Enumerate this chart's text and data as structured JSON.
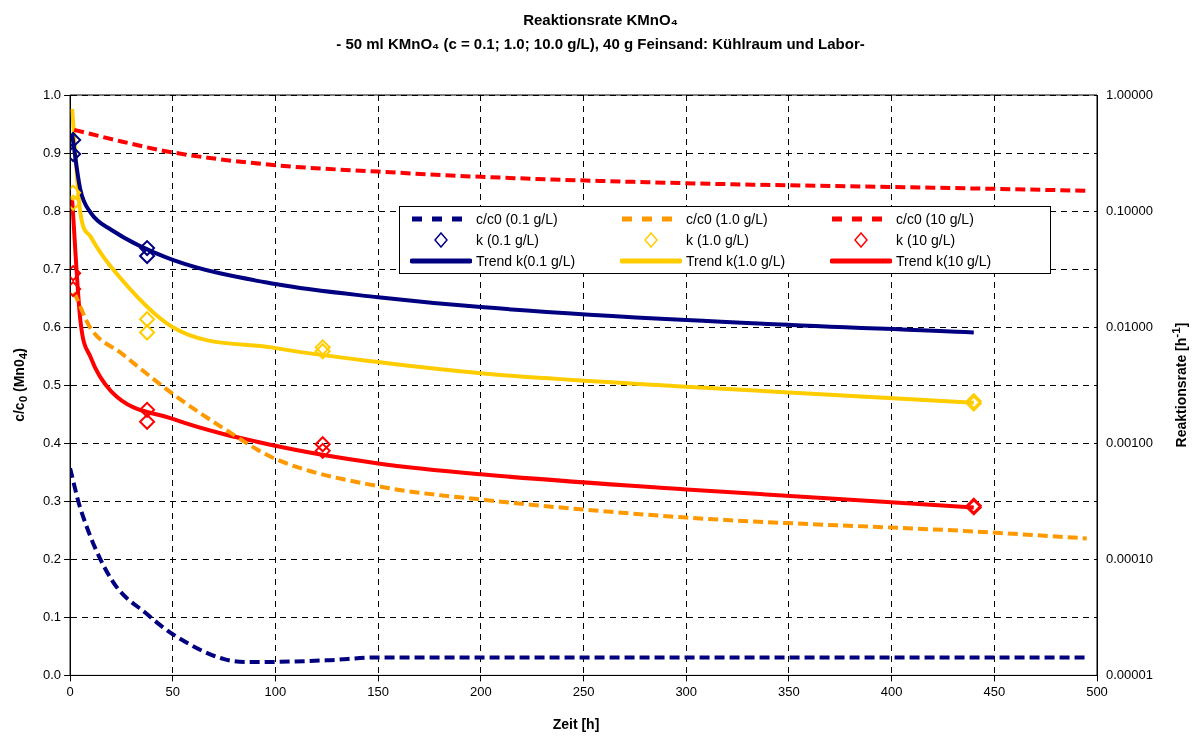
{
  "chart_data": {
    "type": "line",
    "title": "Reaktionsrate KMnO₄",
    "subtitle": "- 50 ml KMnO₄ (c = 0.1; 1.0; 10.0 g/L), 40 g Feinsand: Kühlraum und Labor-",
    "xlabel": "Zeit [h]",
    "ylabel": "c/c$_{0}$ (Mn0$_{4}$)",
    "y2label": "Reaktionsrate [h$^{-1}$]",
    "xlim": [
      0,
      500
    ],
    "xticks": [
      0,
      50,
      100,
      150,
      200,
      250,
      300,
      350,
      400,
      450,
      500
    ],
    "ylim": [
      0,
      1
    ],
    "yticks": [
      {
        "value": 0,
        "label": "0.0"
      },
      {
        "value": 0.1,
        "label": "0.1"
      },
      {
        "value": 0.2,
        "label": "0.2"
      },
      {
        "value": 0.3,
        "label": "0.3"
      },
      {
        "value": 0.4,
        "label": "0.4"
      },
      {
        "value": 0.5,
        "label": "0.5"
      },
      {
        "value": 0.6,
        "label": "0.6"
      },
      {
        "value": 0.7,
        "label": "0.7"
      },
      {
        "value": 0.8,
        "label": "0.8"
      },
      {
        "value": 0.9,
        "label": "0.9"
      },
      {
        "value": 1,
        "label": "1.0"
      }
    ],
    "y2lim": [
      1e-05,
      1
    ],
    "y2ticks": [
      {
        "value": 1e-05,
        "label": "0.00001"
      },
      {
        "value": 0.0001,
        "label": "0.00010"
      },
      {
        "value": 0.001,
        "label": "0.00100"
      },
      {
        "value": 0.01,
        "label": "0.01000"
      },
      {
        "value": 0.1,
        "label": "0.10000"
      },
      {
        "value": 1,
        "label": "1.00000"
      }
    ],
    "log": "y2",
    "grid": true,
    "legend": "top right",
    "series": [
      {
        "name": "c/c0 (0.1 g/L)",
        "type": "line",
        "line_style": "dashed",
        "marker": "none",
        "color": "#000080",
        "x": [
          0,
          5,
          20,
          38,
          50,
          75,
          90,
          125,
          150,
          200,
          300,
          440,
          495
        ],
        "values": [
          0.357,
          0.288,
          0.166,
          0.104,
          0.071,
          0.028,
          0.023,
          0.026,
          0.031,
          0.031,
          0.031,
          0.031,
          0.031
        ]
      },
      {
        "name": "c/c0 (1.0 g/L)",
        "type": "line",
        "line_style": "dashed",
        "marker": "none",
        "color": "#ff9900",
        "x": [
          2,
          10,
          25,
          50,
          75,
          100,
          150,
          200,
          300,
          440,
          495
        ],
        "values": [
          0.66,
          0.598,
          0.555,
          0.485,
          0.425,
          0.373,
          0.326,
          0.303,
          0.272,
          0.248,
          0.236
        ]
      },
      {
        "name": "c/c0 (10 g/L)",
        "type": "line",
        "line_style": "dashed",
        "marker": "none",
        "color": "#ff0000",
        "x": [
          2,
          25,
          50,
          100,
          150,
          200,
          300,
          440,
          495
        ],
        "values": [
          0.94,
          0.92,
          0.901,
          0.879,
          0.868,
          0.859,
          0.848,
          0.839,
          0.835
        ]
      },
      {
        "name": "k (0.1 g/L)",
        "type": "scatter",
        "axis": "y2",
        "marker": "diamond",
        "color": "#000080",
        "x": [
          1.5,
          1.5,
          37.5,
          37.5
        ],
        "values": [
          0.41,
          0.31,
          0.048,
          0.041
        ]
      },
      {
        "name": "k (1.0 g/L)",
        "type": "scatter",
        "axis": "y2",
        "marker": "diamond",
        "color": "#ffcc00",
        "x": [
          1.5,
          1.5,
          37.5,
          37.5,
          123,
          123,
          440,
          440
        ],
        "values": [
          0.144,
          0.118,
          0.0117,
          0.009,
          0.0067,
          0.0062,
          0.0023,
          0.0022
        ]
      },
      {
        "name": "k (10 g/L)",
        "type": "scatter",
        "axis": "y2",
        "marker": "diamond",
        "color": "#ff0000",
        "x": [
          1.5,
          1.5,
          37.5,
          37.5,
          123,
          123,
          440,
          440
        ],
        "values": [
          0.0292,
          0.0213,
          0.00194,
          0.00153,
          0.00098,
          0.00086,
          0.00029,
          0.00028
        ]
      },
      {
        "name": "Trend k(0.1 g/L)",
        "type": "line",
        "axis": "y2",
        "line_style": "solid",
        "marker": "none",
        "color": "#000080",
        "x": [
          1,
          5,
          10,
          20,
          50,
          100,
          150,
          200,
          300,
          440
        ],
        "values": [
          0.46,
          0.153,
          0.097,
          0.069,
          0.038,
          0.0235,
          0.0181,
          0.0149,
          0.0115,
          0.009
        ]
      },
      {
        "name": "Trend k(1.0 g/L)",
        "type": "line",
        "axis": "y2",
        "line_style": "solid",
        "marker": "none",
        "color": "#ffcc00",
        "x": [
          1,
          5,
          10,
          20,
          50,
          100,
          150,
          200,
          300,
          440
        ],
        "values": [
          0.76,
          0.097,
          0.06,
          0.033,
          0.01,
          0.0066,
          0.005,
          0.004,
          0.00307,
          0.00223
        ]
      },
      {
        "name": "Trend k(10 g/L)",
        "type": "line",
        "axis": "y2",
        "line_style": "solid",
        "marker": "none",
        "color": "#ff0000",
        "x": [
          1,
          5,
          10,
          20,
          50,
          100,
          150,
          200,
          300,
          440
        ],
        "values": [
          0.126,
          0.0115,
          0.0055,
          0.0028,
          0.00162,
          0.00095,
          0.00067,
          0.00054,
          0.0004,
          0.00028
        ]
      }
    ]
  }
}
